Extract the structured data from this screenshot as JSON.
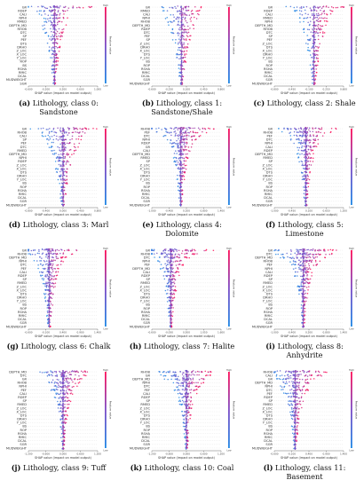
{
  "figure": {
    "xlabel": "SHAP value (impact on model output)",
    "colorbar_label": "Feature value",
    "colorbar_high": "High",
    "colorbar_low": "Low",
    "colors": {
      "high": "#ff0d57",
      "mid": "#7c4cc7",
      "low": "#1e88e5",
      "grid": "#d8d8d8",
      "zero_line": "#999999"
    }
  },
  "chart_data": [
    {
      "type": "scatter",
      "panel_letter": "(a)",
      "caption_text": "Lithology, class 0: Sandstone",
      "features": [
        "GR",
        "RDEP",
        "CALI",
        "NPHI",
        "RMED",
        "DEPTH_MD",
        "RHOB",
        "DTC",
        "SP",
        "PEF",
        "DTS",
        "DRHO",
        "Z_LOC",
        "X_LOC",
        "Y_LOC",
        "ROP",
        "BS",
        "RSHA",
        "RMIC",
        "DCAL",
        "MUDWEIGHT",
        "SGR"
      ],
      "max_abs_shap": [
        0.9,
        0.45,
        0.35,
        0.32,
        0.3,
        0.28,
        0.26,
        0.24,
        0.2,
        0.18,
        0.16,
        0.15,
        0.13,
        0.12,
        0.1,
        0.09,
        0.08,
        0.07,
        0.06,
        0.05,
        0.04,
        0.03
      ],
      "xlim": [
        -0.6,
        1.0
      ]
    },
    {
      "type": "scatter",
      "panel_letter": "(b)",
      "caption_text": "Lithology, class 1: Sandstone/Shale",
      "features": [
        "GR",
        "RMED",
        "CALI",
        "NPHI",
        "RHOB",
        "DEPTH_MD",
        "RDEP",
        "DTC",
        "PEF",
        "SP",
        "Z_LOC",
        "DRHO",
        "X_LOC",
        "DTS",
        "Y_LOC",
        "BS",
        "ROP",
        "RSHA",
        "RMIC",
        "DCAL",
        "SGR",
        "MUDWEIGHT"
      ],
      "max_abs_shap": [
        0.45,
        0.4,
        0.38,
        0.35,
        0.3,
        0.28,
        0.25,
        0.22,
        0.2,
        0.18,
        0.16,
        0.15,
        0.13,
        0.12,
        0.1,
        0.09,
        0.08,
        0.07,
        0.06,
        0.05,
        0.04,
        0.03
      ],
      "xlim": [
        -0.6,
        0.8
      ]
    },
    {
      "type": "scatter",
      "panel_letter": "(c)",
      "caption_text": "Lithology, class 2: Shale",
      "features": [
        "GR",
        "RDEP",
        "CALI",
        "RMED",
        "NPHI",
        "DEPTH_MD",
        "RHOB",
        "DTC",
        "SP",
        "PEF",
        "Z_LOC",
        "DTS",
        "X_LOC",
        "DRHO",
        "Y_LOC",
        "BS",
        "ROP",
        "RSHA",
        "RMIC",
        "DCAL",
        "SGR",
        "MUDWEIGHT"
      ],
      "max_abs_shap": [
        0.7,
        0.4,
        0.35,
        0.3,
        0.28,
        0.26,
        0.24,
        0.22,
        0.2,
        0.18,
        0.16,
        0.14,
        0.13,
        0.12,
        0.1,
        0.09,
        0.08,
        0.07,
        0.06,
        0.05,
        0.04,
        0.03
      ],
      "xlim": [
        -0.8,
        0.6
      ]
    },
    {
      "type": "scatter",
      "panel_letter": "(d)",
      "caption_text": "Lithology, class 3: Marl",
      "features": [
        "GR",
        "RHOB",
        "CALI",
        "SP",
        "PEF",
        "DTC",
        "RMED",
        "DEPTH_MD",
        "NPHI",
        "RDEP",
        "Z_LOC",
        "X_LOC",
        "DTS",
        "DRHO",
        "Y_LOC",
        "BS",
        "ROP",
        "RSHA",
        "RMIC",
        "DCAL",
        "SGR",
        "MUDWEIGHT"
      ],
      "max_abs_shap": [
        0.8,
        0.6,
        0.5,
        0.45,
        0.4,
        0.35,
        0.3,
        0.28,
        0.26,
        0.24,
        0.2,
        0.18,
        0.16,
        0.14,
        0.12,
        0.1,
        0.09,
        0.08,
        0.07,
        0.06,
        0.05,
        0.04
      ],
      "xlim": [
        -0.8,
        0.8
      ]
    },
    {
      "type": "scatter",
      "panel_letter": "(e)",
      "caption_text": "Lithology, class 4: Dolomite",
      "features": [
        "RHOB",
        "PEF",
        "DTC",
        "NPHI",
        "RDEP",
        "GR",
        "CALI",
        "DEPTH_MD",
        "RMED",
        "SP",
        "Z_LOC",
        "X_LOC",
        "DTS",
        "DRHO",
        "Y_LOC",
        "BS",
        "ROP",
        "RSHA",
        "RMIC",
        "DCAL",
        "SGR",
        "MUDWEIGHT"
      ],
      "max_abs_shap": [
        1.2,
        0.9,
        0.7,
        0.55,
        0.45,
        0.4,
        0.35,
        0.3,
        0.28,
        0.25,
        0.22,
        0.2,
        0.18,
        0.15,
        0.13,
        0.11,
        0.1,
        0.08,
        0.07,
        0.06,
        0.05,
        0.04
      ],
      "xlim": [
        -1.0,
        1.4
      ]
    },
    {
      "type": "scatter",
      "panel_letter": "(f)",
      "caption_text": "Lithology, class 5: Limestone",
      "features": [
        "GR",
        "RHOB",
        "PEF",
        "DTC",
        "NPHI",
        "CALI",
        "RDEP",
        "DEPTH_MD",
        "RMED",
        "SP",
        "Z_LOC",
        "X_LOC",
        "DTS",
        "DRHO",
        "Y_LOC",
        "BS",
        "ROP",
        "RSHA",
        "RMIC",
        "DCAL",
        "SGR",
        "MUDWEIGHT"
      ],
      "max_abs_shap": [
        1.0,
        0.8,
        0.6,
        0.5,
        0.42,
        0.38,
        0.32,
        0.3,
        0.27,
        0.24,
        0.2,
        0.18,
        0.16,
        0.14,
        0.12,
        0.1,
        0.09,
        0.08,
        0.07,
        0.06,
        0.05,
        0.04
      ],
      "xlim": [
        -1.0,
        1.2
      ]
    },
    {
      "type": "scatter",
      "panel_letter": "(g)",
      "caption_text": "Lithology, class 6: Chalk",
      "features": [
        "GR",
        "RHOB",
        "DEPTH_MD",
        "NPHI",
        "DTC",
        "PEF",
        "CALI",
        "RDEP",
        "SP",
        "RMED",
        "Z_LOC",
        "X_LOC",
        "DTS",
        "DRHO",
        "Y_LOC",
        "BS",
        "ROP",
        "RSHA",
        "RMIC",
        "DCAL",
        "SGR",
        "MUDWEIGHT"
      ],
      "max_abs_shap": [
        1.1,
        0.7,
        0.5,
        0.45,
        0.4,
        0.35,
        0.3,
        0.27,
        0.25,
        0.22,
        0.2,
        0.18,
        0.16,
        0.14,
        0.12,
        0.1,
        0.09,
        0.08,
        0.07,
        0.06,
        0.05,
        0.04
      ],
      "xlim": [
        -0.6,
        1.4
      ]
    },
    {
      "type": "scatter",
      "panel_letter": "(h)",
      "caption_text": "Lithology, class 7: Halite",
      "features": [
        "GR",
        "RHOB",
        "DTC",
        "NPHI",
        "PEF",
        "DEPTH_MD",
        "CALI",
        "RDEP",
        "SP",
        "RMED",
        "Z_LOC",
        "X_LOC",
        "DTS",
        "DRHO",
        "Y_LOC",
        "BS",
        "ROP",
        "RSHA",
        "RMIC",
        "DCAL",
        "SGR",
        "MUDWEIGHT"
      ],
      "max_abs_shap": [
        1.4,
        0.9,
        0.6,
        0.45,
        0.4,
        0.35,
        0.3,
        0.27,
        0.24,
        0.22,
        0.2,
        0.18,
        0.16,
        0.14,
        0.12,
        0.1,
        0.09,
        0.08,
        0.07,
        0.06,
        0.05,
        0.04
      ],
      "xlim": [
        -0.6,
        1.6
      ]
    },
    {
      "type": "scatter",
      "panel_letter": "(i)",
      "caption_text": "Lithology, class 8: Anhydrite",
      "features": [
        "GR",
        "DTC",
        "DEPTH_MD",
        "RHOB",
        "PEF",
        "NPHI",
        "CALI",
        "RDEP",
        "SP",
        "RMED",
        "Z_LOC",
        "X_LOC",
        "DTS",
        "DRHO",
        "Y_LOC",
        "BS",
        "ROP",
        "RSHA",
        "RMIC",
        "DCAL",
        "SGR",
        "MUDWEIGHT"
      ],
      "max_abs_shap": [
        1.2,
        1.0,
        0.8,
        0.6,
        0.5,
        0.4,
        0.35,
        0.3,
        0.27,
        0.24,
        0.2,
        0.18,
        0.16,
        0.14,
        0.12,
        0.1,
        0.09,
        0.08,
        0.07,
        0.06,
        0.05,
        0.04
      ],
      "xlim": [
        -1.0,
        1.4
      ]
    },
    {
      "type": "scatter",
      "panel_letter": "(j)",
      "caption_text": "Lithology, class 9: Tuff",
      "features": [
        "DEPTH_MD",
        "DTC",
        "GR",
        "RHOB",
        "NPHI",
        "PEF",
        "CALI",
        "RDEP",
        "SP",
        "RMED",
        "Z_LOC",
        "X_LOC",
        "DTS",
        "DRHO",
        "Y_LOC",
        "BS",
        "ROP",
        "RSHA",
        "RMIC",
        "DCAL",
        "SGR",
        "MUDWEIGHT"
      ],
      "max_abs_shap": [
        1.0,
        0.85,
        0.7,
        0.6,
        0.5,
        0.42,
        0.36,
        0.3,
        0.27,
        0.24,
        0.2,
        0.18,
        0.16,
        0.14,
        0.12,
        0.1,
        0.09,
        0.08,
        0.07,
        0.06,
        0.05,
        0.04
      ],
      "xlim": [
        -1.2,
        1.2
      ]
    },
    {
      "type": "scatter",
      "panel_letter": "(k)",
      "caption_text": "Lithology, class 10: Coal",
      "features": [
        "RHOB",
        "GR",
        "DEPTH_MD",
        "NPHI",
        "DTC",
        "PEF",
        "CALI",
        "RDEP",
        "SP",
        "RMED",
        "Z_LOC",
        "X_LOC",
        "DTS",
        "DRHO",
        "Y_LOC",
        "BS",
        "ROP",
        "RSHA",
        "RMIC",
        "DCAL",
        "SGR",
        "MUDWEIGHT"
      ],
      "max_abs_shap": [
        1.0,
        0.9,
        0.8,
        0.6,
        0.5,
        0.42,
        0.36,
        0.3,
        0.27,
        0.24,
        0.2,
        0.18,
        0.16,
        0.14,
        0.12,
        0.1,
        0.09,
        0.08,
        0.07,
        0.06,
        0.05,
        0.04
      ],
      "xlim": [
        -1.2,
        1.2
      ]
    },
    {
      "type": "scatter",
      "panel_letter": "(l)",
      "caption_text": "Lithology, class 11: Basement",
      "features": [
        "RHOB",
        "CALI",
        "GR",
        "DEPTH_MD",
        "NPHI",
        "DTC",
        "PEF",
        "RDEP",
        "SP",
        "RMED",
        "Z_LOC",
        "X_LOC",
        "DTS",
        "DRHO",
        "Y_LOC",
        "BS",
        "ROP",
        "RSHA",
        "RMIC",
        "DCAL",
        "SGR",
        "MUDWEIGHT"
      ],
      "max_abs_shap": [
        1.0,
        0.8,
        0.6,
        0.5,
        0.45,
        0.4,
        0.35,
        0.3,
        0.27,
        0.24,
        0.2,
        0.18,
        0.16,
        0.14,
        0.12,
        0.1,
        0.09,
        0.08,
        0.07,
        0.06,
        0.05,
        0.04
      ],
      "xlim": [
        -0.6,
        1.4
      ]
    }
  ]
}
